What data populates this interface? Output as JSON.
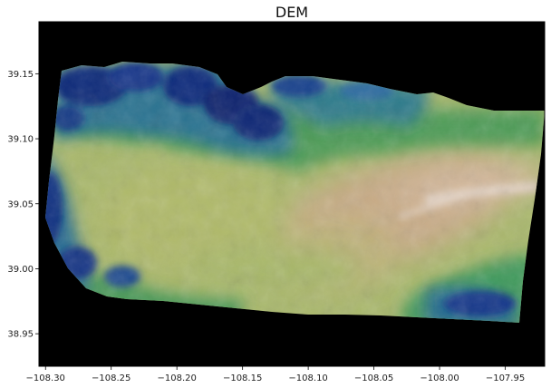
{
  "title": "DEM",
  "map": {
    "extent": {
      "lon_min": -108.305,
      "lon_max": -107.92,
      "lat_min": 38.925,
      "lat_max": 39.19
    },
    "background_color": "#000000",
    "colormap": "gist_earth",
    "x_ticks": [
      {
        "value": -108.3,
        "label": "−108.30"
      },
      {
        "value": -108.25,
        "label": "−108.25"
      },
      {
        "value": -108.2,
        "label": "−108.20"
      },
      {
        "value": -108.15,
        "label": "−108.15"
      },
      {
        "value": -108.1,
        "label": "−108.10"
      },
      {
        "value": -108.05,
        "label": "−108.05"
      },
      {
        "value": -108.0,
        "label": "−108.00"
      },
      {
        "value": -107.95,
        "label": "−107.95"
      }
    ],
    "y_ticks": [
      {
        "value": 39.15,
        "label": "39.15"
      },
      {
        "value": 39.1,
        "label": "39.10"
      },
      {
        "value": 39.05,
        "label": "39.05"
      },
      {
        "value": 39.0,
        "label": "39.00"
      },
      {
        "value": 38.95,
        "label": "38.95"
      }
    ],
    "colors": {
      "low": "#0a1f6e",
      "mid_low": "#1f6e8c",
      "mid": "#3f9a5a",
      "mid_high": "#a7b868",
      "high": "#c2a886",
      "peak": "#e0cfc0"
    }
  }
}
